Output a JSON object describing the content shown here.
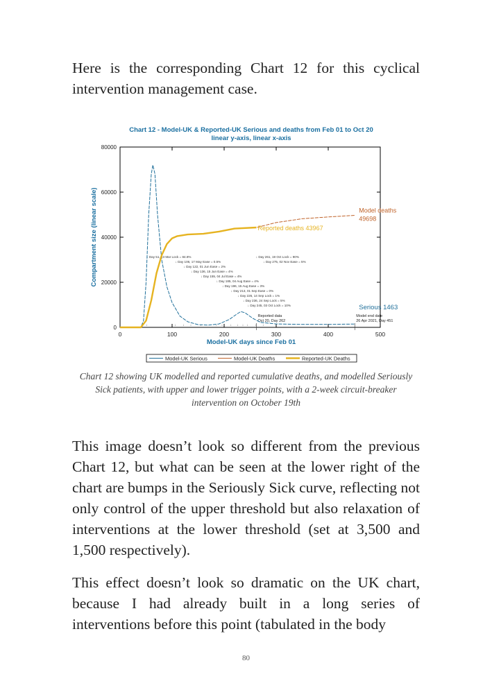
{
  "paragraphs": [
    "Here is the corresponding Chart 12 for this cyclical intervention management case.",
    "This image doesn’t look so different from the previous Chart 12, but what can be seen at the lower right of the chart are bumps in the Seriously Sick curve, reflecting not only control of the upper threshold but also relaxation of interventions at the lower threshold (set at 3,500 and 1,500 respectively).",
    "This effect doesn’t look so dramatic on the UK chart, because I had already built in a long series of interventions before this point (tabulated in the body"
  ],
  "caption": "Chart 12 showing UK modelled and reported cumulative deaths, and modelled Seriously Sick patients, with upper and lower trigger points, with a 2-week circuit-breaker intervention on October 19th",
  "page_number": "80",
  "chart_data": {
    "type": "line",
    "title": "Chart 12 - Model-UK & Reported-UK Serious and deaths from Feb 01 to Oct 20",
    "subtitle": "linear y-axis, linear x-axis",
    "xlabel": "Model-UK days since Feb 01",
    "ylabel": "Compartment size (linear scale)",
    "xlim": [
      0,
      500
    ],
    "ylim": [
      0,
      80000
    ],
    "xticks": [
      "0",
      "100",
      "200",
      "300",
      "400",
      "500"
    ],
    "yticks": [
      "0",
      "20000",
      "40000",
      "60000",
      "80000"
    ],
    "grid": false,
    "legend_position": "bottom",
    "colors": {
      "title": "#1a6fa0",
      "serious": "#1f6f9a",
      "model_deaths": "#c0632a",
      "reported_deaths": "#e6b320"
    },
    "series": [
      {
        "name": "Model-UK Serious",
        "x": [
          0,
          40,
          45,
          50,
          55,
          60,
          63,
          67,
          72,
          80,
          90,
          100,
          115,
          130,
          150,
          170,
          190,
          210,
          225,
          232,
          240,
          255,
          270,
          300,
          350,
          400,
          451
        ],
        "y": [
          0,
          0,
          3000,
          20000,
          50000,
          68000,
          72000,
          68000,
          50000,
          30000,
          18000,
          11000,
          5000,
          2500,
          1200,
          1000,
          1500,
          3500,
          6000,
          7000,
          6500,
          4000,
          2200,
          1500,
          1300,
          1300,
          1463
        ]
      },
      {
        "name": "Model-UK Deaths",
        "x": [
          0,
          40,
          50,
          60,
          70,
          80,
          90,
          100,
          110,
          130,
          160,
          190,
          220,
          262,
          300,
          350,
          400,
          451
        ],
        "y": [
          0,
          0,
          3000,
          12000,
          24000,
          32000,
          37000,
          39500,
          40500,
          41200,
          41500,
          42500,
          43800,
          44300,
          46500,
          48200,
          49000,
          49698
        ]
      },
      {
        "name": "Reported-UK Deaths",
        "x": [
          0,
          40,
          50,
          60,
          70,
          80,
          90,
          100,
          110,
          130,
          160,
          190,
          220,
          262
        ],
        "y": [
          0,
          0,
          3000,
          12000,
          24000,
          32000,
          37000,
          39500,
          40500,
          41200,
          41500,
          42500,
          43800,
          44300
        ]
      }
    ],
    "end_labels": {
      "model_deaths": [
        "Model deaths",
        "49698"
      ],
      "reported_deaths": "Reported deaths 43967",
      "serious": "Serious 1463"
    },
    "annotations": [
      {
        "day": 51,
        "text": "Day 51, 23 Mar Lock = 84.8%"
      },
      {
        "day": 106,
        "text": "Day 106, 17 May Ease = 0.5%"
      },
      {
        "day": 122,
        "text": "Day 122, 01 Jun Ease = 2%"
      },
      {
        "day": 136,
        "text": "Day 136, 15 Jun Ease = 4%"
      },
      {
        "day": 155,
        "text": "Day 155, 04 Jul Ease = 4%"
      },
      {
        "day": 185,
        "text": "Day 185, 04 Aug Ease = 4%"
      },
      {
        "day": 196,
        "text": "Day 196, 15 Aug Ease = 3%"
      },
      {
        "day": 213,
        "text": "Day 213, 01 Sep Ease = 0%"
      },
      {
        "day": 226,
        "text": "Day 226, 14 Sep Lock = 1%"
      },
      {
        "day": 236,
        "text": "Day 236, 24 Sep Lock = 5%"
      },
      {
        "day": 245,
        "text": "Day 245, 03 Oct Lock = 10%"
      },
      {
        "day": 261,
        "text": "Day 261, 19 Oct Lock = 90%"
      },
      {
        "day": 275,
        "text": "Day 275, 02 Nov Ease = 5%"
      }
    ],
    "date_markers": [
      {
        "day": 262,
        "lines": [
          "Reported data",
          "Oct 20, Day 262"
        ]
      },
      {
        "day": 451,
        "lines": [
          "Model end date",
          "26 Apr 2021, Day 451"
        ]
      }
    ]
  }
}
